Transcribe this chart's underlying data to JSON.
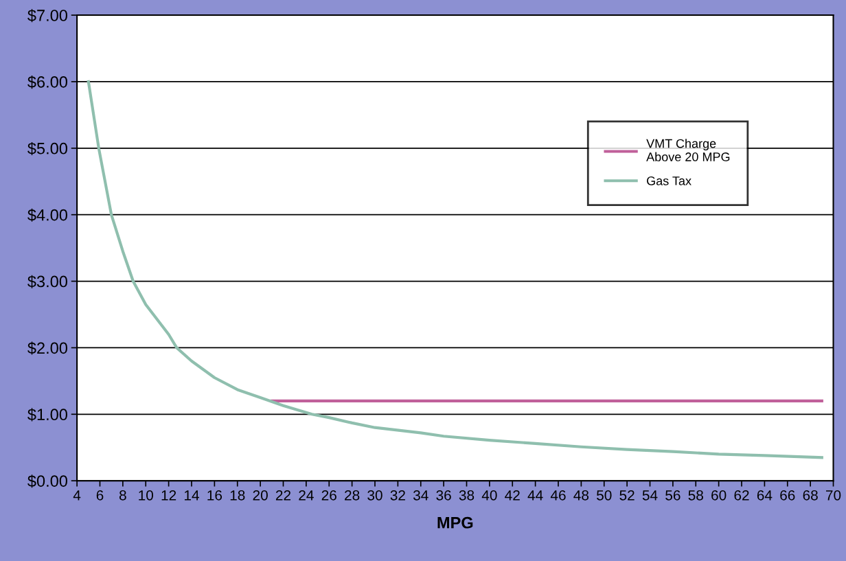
{
  "chart_data": {
    "type": "line",
    "xlabel": "MPG",
    "xlim": [
      4,
      70
    ],
    "xticks": [
      4,
      6,
      8,
      10,
      12,
      14,
      16,
      18,
      20,
      22,
      24,
      26,
      28,
      30,
      32,
      34,
      36,
      38,
      40,
      42,
      44,
      46,
      48,
      50,
      52,
      54,
      56,
      58,
      60,
      62,
      64,
      66,
      68,
      70
    ],
    "ylim": [
      0,
      7
    ],
    "yticks": [
      {
        "value": 0,
        "label": "$0.00"
      },
      {
        "value": 1,
        "label": "$1.00"
      },
      {
        "value": 2,
        "label": "$2.00"
      },
      {
        "value": 3,
        "label": "$3.00"
      },
      {
        "value": 4,
        "label": "$4.00"
      },
      {
        "value": 5,
        "label": "$5.00"
      },
      {
        "value": 6,
        "label": "$6.00"
      },
      {
        "value": 7,
        "label": "$7.00"
      }
    ],
    "grid": "y",
    "legend": "top right",
    "marker": "none",
    "line_style": "solid",
    "series": [
      {
        "name": "VMT Charge\nAbove 20 MPG",
        "color": "#c0609a",
        "x": [
          21,
          69
        ],
        "values": [
          1.2,
          1.2
        ]
      },
      {
        "name": "Gas Tax",
        "color": "#8fbfae",
        "x": [
          5,
          5.9,
          7,
          8,
          8.9,
          10,
          12,
          12.7,
          14,
          16,
          18,
          20,
          22,
          24.5,
          26,
          28,
          30,
          34,
          36,
          40,
          44,
          48,
          52,
          56,
          60,
          64,
          69
        ],
        "values": [
          6.0,
          5.0,
          4.0,
          3.45,
          3.0,
          2.65,
          2.2,
          2.0,
          1.8,
          1.55,
          1.37,
          1.25,
          1.13,
          1.0,
          0.95,
          0.87,
          0.8,
          0.72,
          0.67,
          0.61,
          0.56,
          0.51,
          0.47,
          0.44,
          0.4,
          0.38,
          0.35
        ]
      }
    ]
  }
}
